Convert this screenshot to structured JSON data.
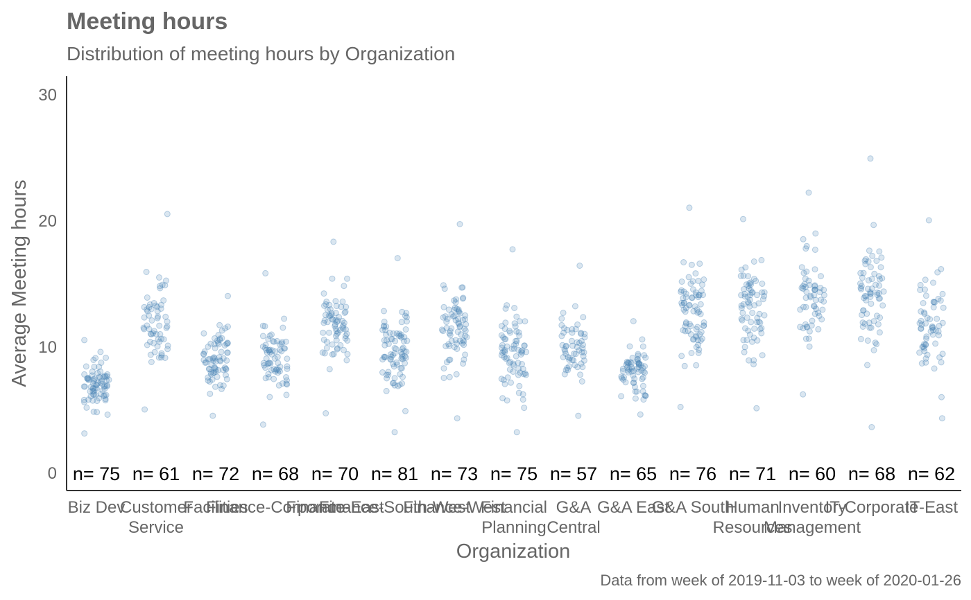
{
  "chart_data": {
    "type": "scatter",
    "title": "Meeting hours",
    "subtitle": "Distribution of meeting hours by Organization",
    "xlabel": "Organization",
    "ylabel": "Average Meeting hours",
    "caption": "Data from week of 2019-11-03 to week of 2020-01-26",
    "ylim": [
      0,
      31
    ],
    "yticks": [
      0,
      10,
      20,
      30
    ],
    "grid": false,
    "point_color": "#4682b4",
    "point_opacity": 0.2,
    "categories": [
      {
        "label": [
          "Biz Dev"
        ],
        "count_label": "n= 75",
        "n": 75,
        "min": 3.1,
        "max": 10.5,
        "center": 7.2
      },
      {
        "label": [
          "Customer",
          "Service"
        ],
        "count_label": "n= 61",
        "n": 61,
        "min": 5.0,
        "max": 20.5,
        "center": 8.5
      },
      {
        "label": [
          "Facilities"
        ],
        "count_label": "n= 72",
        "n": 72,
        "min": 4.5,
        "max": 14.0,
        "center": 9.0
      },
      {
        "label": [
          "Finance-Corporate"
        ],
        "count_label": "n= 68",
        "n": 68,
        "min": 3.8,
        "max": 15.8,
        "center": 8.0
      },
      {
        "label": [
          "Finance-East"
        ],
        "count_label": "n= 70",
        "n": 70,
        "min": 4.7,
        "max": 18.3,
        "center": 11.5
      },
      {
        "label": [
          "Finance-South-West"
        ],
        "count_label": "n= 81",
        "n": 81,
        "min": 3.2,
        "max": 17.0,
        "center": 9.5
      },
      {
        "label": [
          "Finance-West"
        ],
        "count_label": "n= 73",
        "n": 73,
        "min": 4.3,
        "max": 19.7,
        "center": 10.5
      },
      {
        "label": [
          "Financial",
          "Planning"
        ],
        "count_label": "n= 75",
        "n": 75,
        "min": 3.2,
        "max": 17.7,
        "center": 8.3
      },
      {
        "label": [
          "G&A",
          "Central"
        ],
        "count_label": "n= 57",
        "n": 57,
        "min": 4.5,
        "max": 16.4,
        "center": 9.0
      },
      {
        "label": [
          "G&A East"
        ],
        "count_label": "n= 65",
        "n": 65,
        "min": 4.6,
        "max": 12.0,
        "center": 7.8
      },
      {
        "label": [
          "G&A South"
        ],
        "count_label": "n= 76",
        "n": 76,
        "min": 5.2,
        "max": 21.0,
        "center": 11.5
      },
      {
        "label": [
          "Human",
          "Resources"
        ],
        "count_label": "n= 71",
        "n": 71,
        "min": 5.1,
        "max": 20.1,
        "center": 12.5
      },
      {
        "label": [
          "Inventory",
          "Management"
        ],
        "count_label": "n= 60",
        "n": 60,
        "min": 6.2,
        "max": 22.2,
        "center": 13.5
      },
      {
        "label": [
          "IT-Corporate"
        ],
        "count_label": "n= 68",
        "n": 68,
        "min": 3.6,
        "max": 24.9,
        "center": 12.5
      },
      {
        "label": [
          "IT-East"
        ],
        "count_label": "n= 62",
        "n": 62,
        "min": 4.3,
        "max": 20.0,
        "center": 11.0
      }
    ]
  }
}
